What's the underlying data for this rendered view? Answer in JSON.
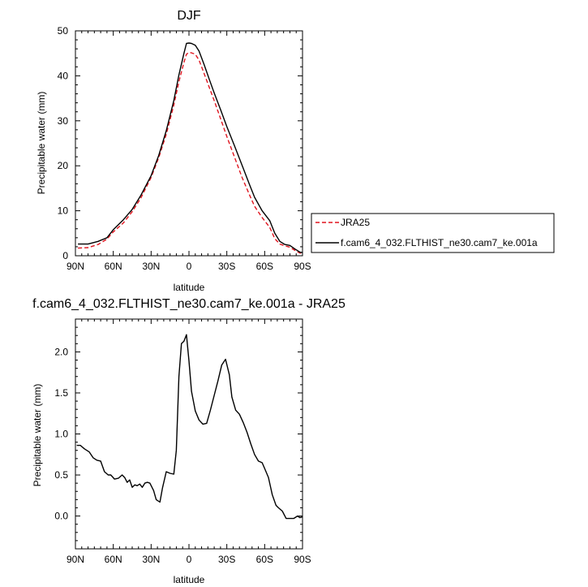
{
  "chart_data": [
    {
      "type": "line",
      "title": "DJF",
      "xlabel": "latitude",
      "ylabel": "Precipitable water (mm)",
      "xlim": [
        -90,
        90
      ],
      "ylim": [
        0,
        50
      ],
      "xticks": [
        {
          "value": -90,
          "label": "90N"
        },
        {
          "value": -60,
          "label": "60N"
        },
        {
          "value": -30,
          "label": "30N"
        },
        {
          "value": 0,
          "label": "0"
        },
        {
          "value": 30,
          "label": "30S"
        },
        {
          "value": 60,
          "label": "60S"
        },
        {
          "value": 90,
          "label": "90S"
        }
      ],
      "yticks": [
        {
          "value": 0,
          "label": "0"
        },
        {
          "value": 10,
          "label": "10"
        },
        {
          "value": 20,
          "label": "20"
        },
        {
          "value": 30,
          "label": "30"
        },
        {
          "value": 40,
          "label": "40"
        },
        {
          "value": 50,
          "label": "50"
        }
      ],
      "legend_position": "right",
      "series": [
        {
          "name": "JRA25",
          "color": "#e0141e",
          "dash": "dashed",
          "x": [
            -88,
            -80,
            -72,
            -65,
            -60,
            -52,
            -45,
            -38,
            -30,
            -24,
            -18,
            -12,
            -8,
            -4,
            -2,
            0,
            2,
            5,
            8,
            12,
            16,
            20,
            25,
            30,
            36,
            42,
            48,
            52,
            58,
            64,
            68,
            72,
            76,
            80,
            84,
            88,
            90
          ],
          "y": [
            1.7,
            1.8,
            2.5,
            3.7,
            5.3,
            7.3,
            9.8,
            12.9,
            17.4,
            21.8,
            27.0,
            33.5,
            38.7,
            43.0,
            44.8,
            45.2,
            45.1,
            44.8,
            43.5,
            40.5,
            37.5,
            34.5,
            30.5,
            26.5,
            22.0,
            17.5,
            13.5,
            11.0,
            8.5,
            6.3,
            3.8,
            2.6,
            2.2,
            1.9,
            1.2,
            0.6,
            0.5
          ]
        },
        {
          "name": "f.cam6_4_032.FLTHIST_ne30.cam7_ke.001a",
          "color": "#000000",
          "dash": "solid",
          "x": [
            -88,
            -80,
            -72,
            -65,
            -60,
            -52,
            -45,
            -38,
            -30,
            -24,
            -18,
            -12,
            -8,
            -4,
            -2,
            0,
            2,
            5,
            8,
            12,
            16,
            20,
            25,
            30,
            36,
            42,
            48,
            52,
            58,
            64,
            68,
            72,
            76,
            80,
            84,
            88,
            90
          ],
          "y": [
            2.6,
            2.6,
            3.2,
            4.0,
            5.8,
            8.0,
            10.3,
            13.5,
            17.8,
            22.3,
            27.8,
            34.5,
            40.2,
            45.0,
            47.2,
            47.3,
            47.2,
            46.8,
            45.5,
            42.5,
            39.3,
            36.2,
            32.5,
            28.7,
            24.5,
            20.2,
            15.8,
            13.0,
            10.0,
            7.8,
            5.0,
            3.2,
            2.5,
            2.3,
            1.5,
            0.8,
            0.7
          ]
        }
      ]
    },
    {
      "type": "line",
      "title": "f.cam6_4_032.FLTHIST_ne30.cam7_ke.001a - JRA25",
      "xlabel": "latitude",
      "ylabel": "Precipitable water (mm)",
      "xlim": [
        -90,
        90
      ],
      "ylim": [
        -0.4,
        2.4
      ],
      "xticks": [
        {
          "value": -90,
          "label": "90N"
        },
        {
          "value": -60,
          "label": "60N"
        },
        {
          "value": -30,
          "label": "30N"
        },
        {
          "value": 0,
          "label": "0"
        },
        {
          "value": 30,
          "label": "30S"
        },
        {
          "value": 60,
          "label": "60S"
        },
        {
          "value": 90,
          "label": "90S"
        }
      ],
      "yticks": [
        {
          "value": 0,
          "label": "0.0"
        },
        {
          "value": 0.5,
          "label": "0.5"
        },
        {
          "value": 1.0,
          "label": "1.0"
        },
        {
          "value": 1.5,
          "label": "1.5"
        },
        {
          "value": 2.0,
          "label": "2.0"
        }
      ],
      "series": [
        {
          "color": "#000000",
          "dash": "solid",
          "x": [
            -89,
            -86,
            -83,
            -79,
            -76,
            -73,
            -70,
            -67,
            -64,
            -62,
            -59,
            -56,
            -53,
            -51,
            -49,
            -47,
            -45,
            -43,
            -41,
            -39,
            -37,
            -35,
            -33,
            -31,
            -28,
            -26,
            -23,
            -21,
            -18,
            -15,
            -12,
            -10,
            -8,
            -6,
            -4,
            -2,
            0,
            2,
            5,
            8,
            11,
            14,
            17,
            20,
            23,
            26,
            29,
            32,
            34,
            37,
            40,
            43,
            46,
            49,
            52,
            55,
            58,
            60,
            63,
            66,
            69,
            71,
            74,
            77,
            80,
            83,
            86,
            88,
            90
          ],
          "y": [
            0.86,
            0.86,
            0.82,
            0.78,
            0.71,
            0.68,
            0.67,
            0.54,
            0.5,
            0.5,
            0.45,
            0.46,
            0.5,
            0.47,
            0.41,
            0.44,
            0.35,
            0.38,
            0.37,
            0.39,
            0.35,
            0.4,
            0.41,
            0.4,
            0.31,
            0.2,
            0.17,
            0.34,
            0.54,
            0.52,
            0.51,
            0.8,
            1.7,
            2.1,
            2.13,
            2.21,
            1.89,
            1.52,
            1.28,
            1.17,
            1.12,
            1.13,
            1.29,
            1.47,
            1.65,
            1.84,
            1.91,
            1.72,
            1.45,
            1.29,
            1.24,
            1.14,
            1.02,
            0.88,
            0.75,
            0.67,
            0.65,
            0.58,
            0.47,
            0.26,
            0.13,
            0.1,
            0.06,
            -0.03,
            -0.03,
            -0.03,
            0.0,
            -0.02,
            -0.01
          ]
        }
      ]
    }
  ]
}
